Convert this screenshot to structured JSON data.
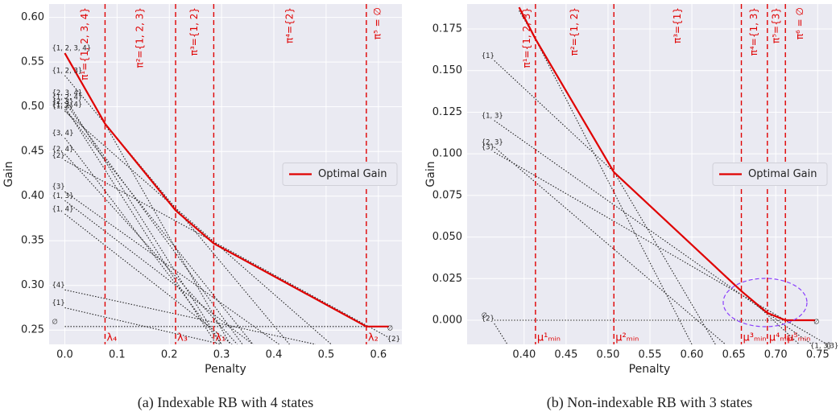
{
  "chart_data": [
    {
      "type": "line",
      "xlabel": "Penalty",
      "ylabel": "Gain",
      "caption": "(a) Indexable RB with 4 states",
      "xlim": [
        -0.03,
        0.645
      ],
      "ylim": [
        0.234,
        0.615
      ],
      "xticks": [
        {
          "value": 0,
          "label": "0.0"
        },
        0.1,
        0.2,
        0.3,
        0.4,
        0.5,
        0.6
      ],
      "yticks": [
        0.25,
        {
          "value": 0.3,
          "label": "0.30"
        },
        0.35,
        {
          "value": 0.4,
          "label": "0.40"
        },
        0.45,
        {
          "value": 0.5,
          "label": "0.50"
        },
        0.55,
        {
          "value": 0.6,
          "label": "0.60"
        }
      ],
      "grid": true,
      "legend": "right",
      "series": [
        {
          "name": "Optimal Gain",
          "color": "#e00000",
          "x": [
            0,
            0.077,
            0.212,
            0.285,
            0.577,
            0.62
          ],
          "values": [
            0.56,
            0.481,
            0.384,
            0.347,
            0.254,
            0.254
          ]
        }
      ],
      "subsets_color": "#222222",
      "subsets": [
        {
          "name": "{1, 2, 3, 4}",
          "x": [
            0,
            0.3165
          ],
          "values": [
            0.56,
            0.234
          ]
        },
        {
          "name": "{1, 2, 3}",
          "x": [
            0,
            0.43
          ],
          "values": [
            0.535,
            0.234
          ]
        },
        {
          "name": "{2, 3, 4}",
          "x": [
            0,
            0.3
          ],
          "values": [
            0.51,
            0.234
          ]
        },
        {
          "name": "{1, 2, 4}",
          "x": [
            0,
            0.34
          ],
          "values": [
            0.505,
            0.234
          ]
        },
        {
          "name": "{2, 3}",
          "x": [
            0,
            0.29
          ],
          "values": [
            0.5,
            0.234
          ]
        },
        {
          "name": "{1, 3, 4}",
          "x": [
            0,
            0.36
          ],
          "values": [
            0.497,
            0.234
          ]
        },
        {
          "name": "{1, 2}",
          "x": [
            0,
            0.51
          ],
          "values": [
            0.495,
            0.234
          ]
        },
        {
          "name": "{3, 4}",
          "x": [
            0,
            0.3
          ],
          "values": [
            0.465,
            0.234
          ]
        },
        {
          "name": "{2, 4}",
          "x": [
            0,
            0.33
          ],
          "values": [
            0.447,
            0.234
          ]
        },
        {
          "name": "{2}",
          "x": [
            0,
            0.62
          ],
          "values": [
            0.44,
            0.2416
          ],
          "end_label": "{2}"
        },
        {
          "name": "{3}",
          "x": [
            0,
            0.41
          ],
          "values": [
            0.405,
            0.234
          ]
        },
        {
          "name": "{1, 3}",
          "x": [
            0,
            0.36
          ],
          "values": [
            0.395,
            0.234
          ]
        },
        {
          "name": "{1, 4}",
          "x": [
            0,
            0.32
          ],
          "values": [
            0.38,
            0.234
          ]
        },
        {
          "name": "{4}",
          "x": [
            0,
            0.48
          ],
          "values": [
            0.295,
            0.234
          ]
        },
        {
          "name": "{1}",
          "x": [
            0,
            0.3
          ],
          "values": [
            0.275,
            0.234
          ]
        },
        {
          "name": "∅",
          "x": [
            0,
            0.62
          ],
          "values": [
            0.254,
            0.254
          ],
          "end_label": "∅"
        }
      ],
      "regions": [
        "π¹={1, 2, 3, 4}",
        "π²={1, 2, 3}",
        "π³={1, 2}",
        "π⁴={2}",
        "π⁵ = ∅"
      ],
      "thresholds": [
        "λ₄",
        "λ₃",
        "λ₁",
        "λ₂"
      ]
    },
    {
      "type": "line",
      "xlabel": "Penalty",
      "ylabel": "Gain",
      "caption": "(b) Non-indexable RB with 3 states",
      "xlim": [
        0.332,
        0.767
      ],
      "ylim": [
        -0.0145,
        0.19
      ],
      "xticks": [
        {
          "value": 0.4,
          "label": "0.40"
        },
        0.45,
        {
          "value": 0.5,
          "label": "0.50"
        },
        0.55,
        {
          "value": 0.6,
          "label": "0.60"
        },
        0.65,
        {
          "value": 0.7,
          "label": "0.70"
        },
        0.75
      ],
      "yticks": [
        {
          "value": 0,
          "label": "0.000"
        },
        {
          "value": 0.025,
          "label": "0.025"
        },
        {
          "value": 0.05,
          "label": "0.050"
        },
        {
          "value": 0.075,
          "label": "0.075"
        },
        {
          "value": 0.1,
          "label": "0.100"
        },
        {
          "value": 0.125,
          "label": "0.125"
        },
        {
          "value": 0.15,
          "label": "0.150"
        },
        {
          "value": 0.175,
          "label": "0.175"
        }
      ],
      "grid": true,
      "legend": "right",
      "series": [
        {
          "name": "Optimal Gain",
          "color": "#e00000",
          "x": [
            0.394,
            0.4135,
            0.507,
            0.659,
            0.69,
            0.7115,
            0.747
          ],
          "values": [
            0.188,
            0.169,
            0.089,
            0.0175,
            0.0044,
            0,
            0
          ]
        }
      ],
      "subsets_color": "#222222",
      "subsets": [
        {
          "x": [
            0.394,
            0.6
          ],
          "values": [
            0.188,
            -0.0145
          ]
        },
        {
          "x": [
            0.394,
            0.628
          ],
          "values": [
            0.186,
            -0.0145
          ]
        },
        {
          "name": "{1}",
          "x": [
            0.3644,
            0.728
          ],
          "values": [
            0.156,
            -0.0145
          ]
        },
        {
          "name": "{1, 3}",
          "x": [
            0.3644,
            0.743
          ],
          "values": [
            0.12,
            -0.0145
          ],
          "end_label": "{1, 3}"
        },
        {
          "name": "{2, 3}",
          "x": [
            0.3644,
            0.64
          ],
          "values": [
            0.104,
            -0.0145
          ]
        },
        {
          "name": "{3}",
          "x": [
            0.3644,
            0.7613
          ],
          "values": [
            0.101,
            -0.0145
          ],
          "end_label": "{3}"
        },
        {
          "name": "∅",
          "x": [
            0.3644,
            0.747
          ],
          "values": [
            0,
            0
          ],
          "end_label": "∅"
        },
        {
          "name": "{2}",
          "x": [
            0.3644,
            0.38
          ],
          "values": [
            -0.002,
            -0.0145
          ]
        }
      ],
      "regions": [
        "π¹={1, 2, 3}",
        "π²={1, 2}",
        "π³={1}",
        "π⁴={1, 3}",
        "π⁵={3}",
        "π⁶ = ∅"
      ],
      "thresholds": [
        "μ¹ₘᵢₙ",
        "μ²ₘᵢₙ",
        "μ³ₘᵢₙ",
        "μ⁴ₘᵢₙ",
        "μ⁵ₘᵢₙ"
      ]
    }
  ]
}
